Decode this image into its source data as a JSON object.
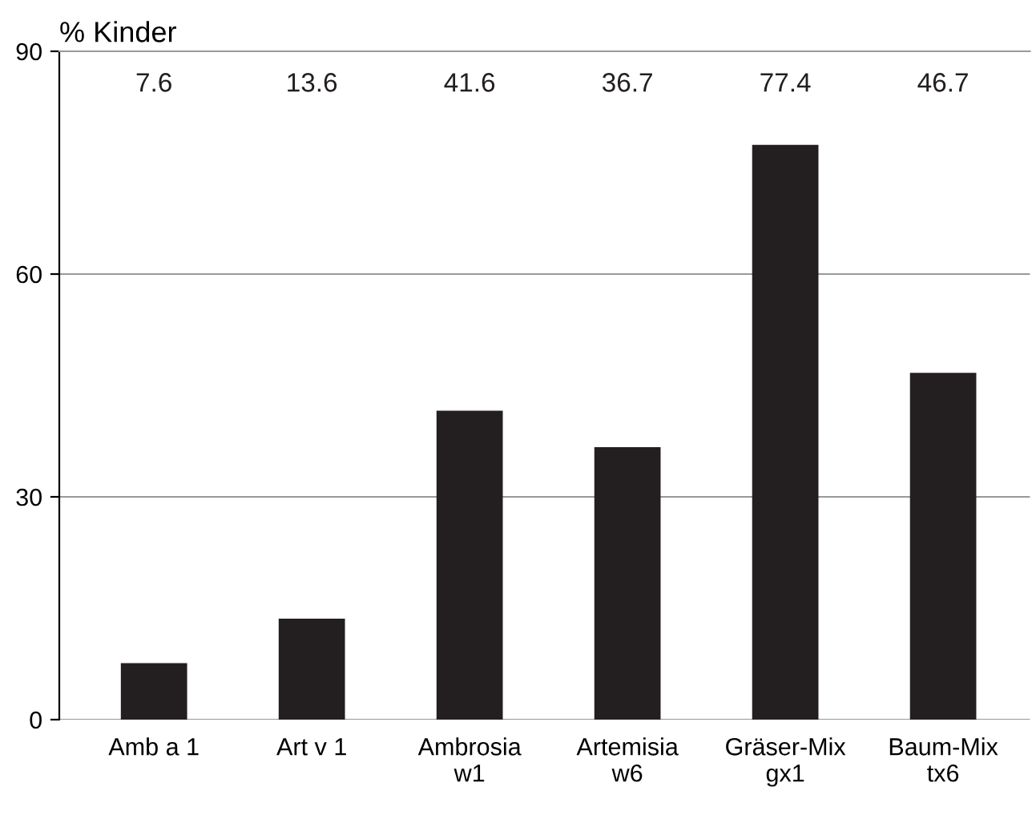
{
  "chart_data": {
    "type": "bar",
    "ylabel": "% Kinder",
    "categories": [
      "Amb a 1",
      "Art v 1",
      "Ambrosia\nw1",
      "Artemisia\nw6",
      "Gräser-Mix\ngx1",
      "Baum-Mix\ntx6"
    ],
    "values": [
      7.6,
      13.6,
      41.6,
      36.7,
      77.4,
      46.7
    ],
    "color": "#231f20",
    "annotations": [
      "7.6",
      "13.6",
      "41.6",
      "36.7",
      "77.4",
      "46.7"
    ],
    "ylim": [
      0,
      90
    ],
    "yticks": [
      0,
      30,
      60,
      90
    ],
    "grid": "y"
  }
}
